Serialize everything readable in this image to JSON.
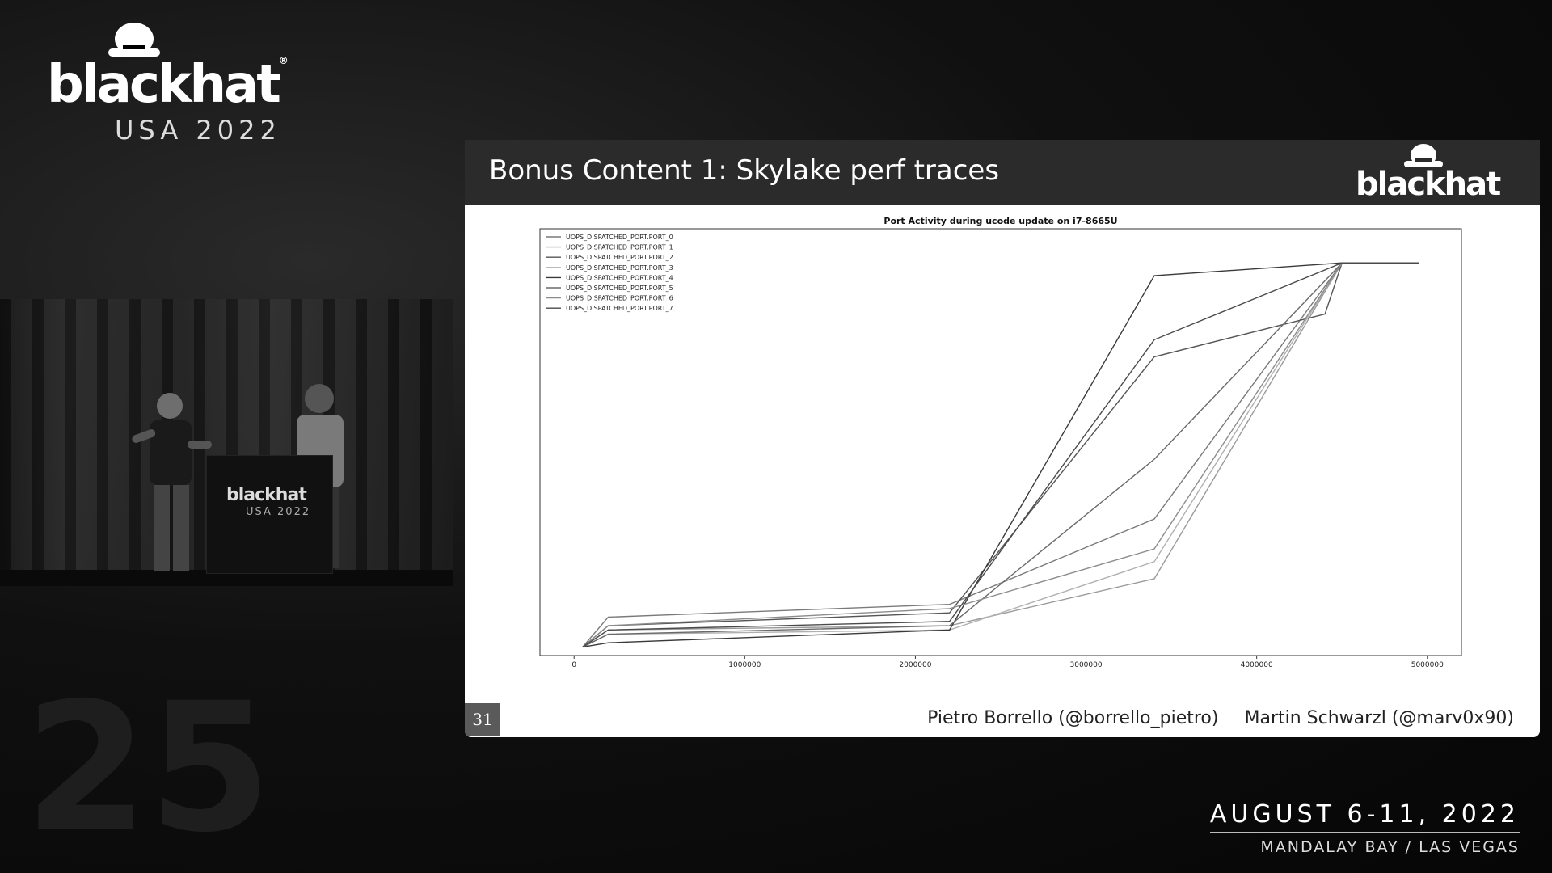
{
  "event": {
    "logo_word": "blackhat",
    "logo_registered": "®",
    "logo_sub": "USA 2022",
    "dates": "AUGUST 6-11, 2022",
    "location": "MANDALAY BAY / LAS VEGAS",
    "anniversary": "25",
    "podium_logo": "blackhat",
    "podium_sub": "USA 2022"
  },
  "slide": {
    "title": "Bonus Content 1: Skylake perf traces",
    "logo_word": "blackhat",
    "page_number": "31",
    "authors": [
      "Pietro Borrello (@borrello_pietro)",
      "Martin Schwarzl (@marv0x90)"
    ]
  },
  "chart_data": {
    "type": "line",
    "title": "Port Activity during ucode update on i7-8665U",
    "xlabel": "",
    "ylabel": "",
    "xlim": [
      -200000,
      5200000
    ],
    "ylim": [
      0,
      1
    ],
    "x_ticks": [
      "0",
      "1000000",
      "2000000",
      "3000000",
      "4000000",
      "5000000"
    ],
    "legend_position": "top-left",
    "grid": false,
    "series": [
      {
        "name": "UOPS_DISPATCHED_PORT.PORT_0",
        "color": "#7a7a7a",
        "x": [
          50000,
          200000,
          2200000,
          3400000,
          4500000,
          4950000
        ],
        "y": [
          0.02,
          0.09,
          0.12,
          0.32,
          0.92,
          0.92
        ]
      },
      {
        "name": "UOPS_DISPATCHED_PORT.PORT_1",
        "color": "#9a9a9a",
        "x": [
          50000,
          200000,
          2200000,
          3400000,
          4500000,
          4950000
        ],
        "y": [
          0.02,
          0.06,
          0.07,
          0.18,
          0.92,
          0.92
        ]
      },
      {
        "name": "UOPS_DISPATCHED_PORT.PORT_2",
        "color": "#555555",
        "x": [
          50000,
          200000,
          2200000,
          3400000,
          4400000,
          4500000,
          4950000
        ],
        "y": [
          0.02,
          0.07,
          0.1,
          0.7,
          0.8,
          0.92,
          0.92
        ]
      },
      {
        "name": "UOPS_DISPATCHED_PORT.PORT_3",
        "color": "#b0b0b0",
        "x": [
          50000,
          200000,
          2200000,
          3400000,
          4500000,
          4950000
        ],
        "y": [
          0.02,
          0.05,
          0.06,
          0.22,
          0.92,
          0.92
        ]
      },
      {
        "name": "UOPS_DISPATCHED_PORT.PORT_4",
        "color": "#3a3a3a",
        "x": [
          50000,
          200000,
          2200000,
          3400000,
          4500000,
          4950000
        ],
        "y": [
          0.02,
          0.03,
          0.06,
          0.89,
          0.92,
          0.92
        ]
      },
      {
        "name": "UOPS_DISPATCHED_PORT.PORT_5",
        "color": "#6a6a6a",
        "x": [
          50000,
          200000,
          2200000,
          3400000,
          4500000,
          4950000
        ],
        "y": [
          0.02,
          0.05,
          0.07,
          0.46,
          0.92,
          0.92
        ]
      },
      {
        "name": "UOPS_DISPATCHED_PORT.PORT_6",
        "color": "#8c8c8c",
        "x": [
          50000,
          200000,
          2200000,
          3400000,
          4500000,
          4950000
        ],
        "y": [
          0.02,
          0.07,
          0.11,
          0.25,
          0.92,
          0.92
        ]
      },
      {
        "name": "UOPS_DISPATCHED_PORT.PORT_7",
        "color": "#4a4a4a",
        "x": [
          50000,
          200000,
          2200000,
          3400000,
          4500000,
          4950000
        ],
        "y": [
          0.02,
          0.06,
          0.08,
          0.74,
          0.92,
          0.92
        ]
      }
    ]
  }
}
